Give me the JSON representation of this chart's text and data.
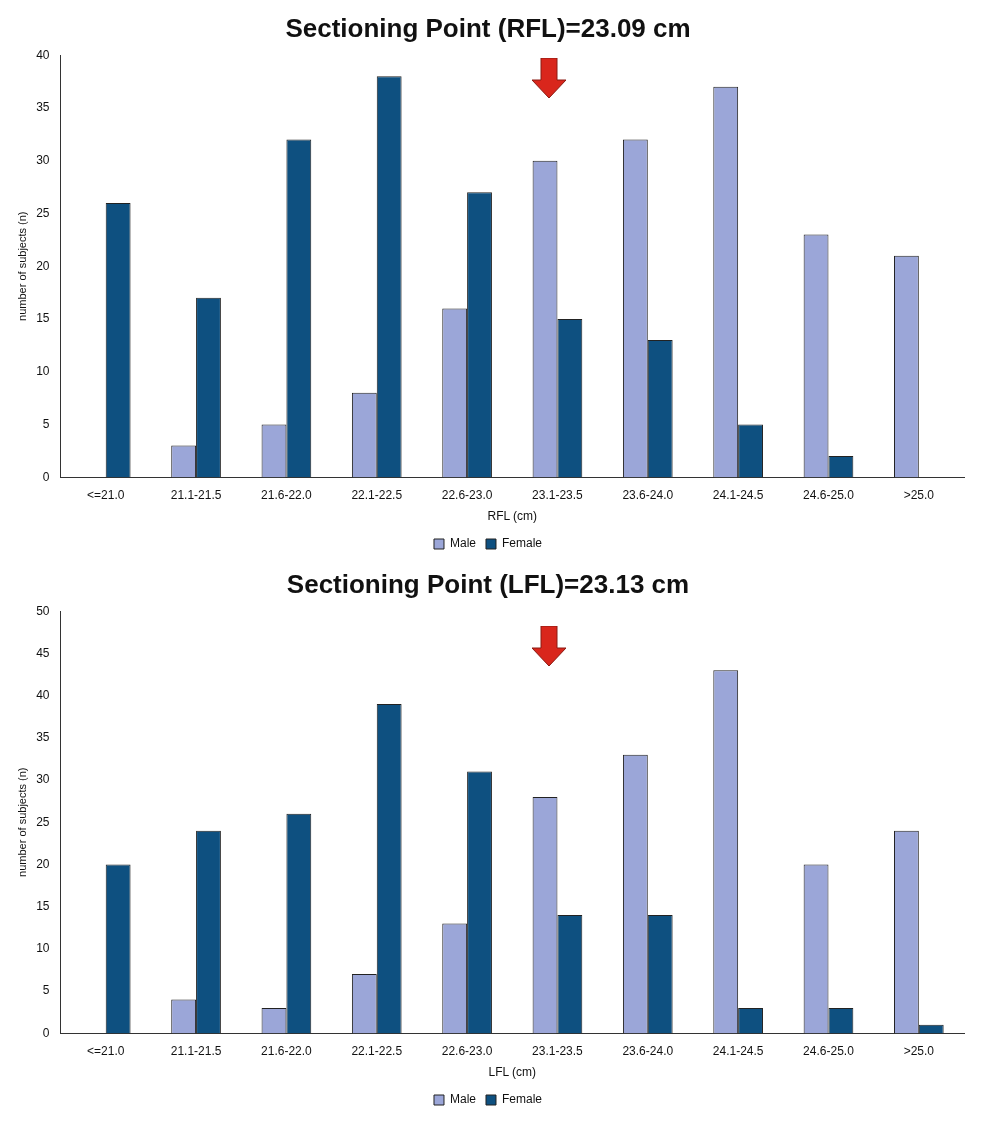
{
  "chart_data": [
    {
      "type": "bar",
      "title": "Sectioning Point (RFL)=23.09 cm",
      "xlabel": "RFL (cm)",
      "ylabel": "number of subjects (n)",
      "categories": [
        "<=21.0",
        "21.1-21.5",
        "21.6-22.0",
        "22.1-22.5",
        "22.6-23.0",
        "23.1-23.5",
        "23.6-24.0",
        "24.1-24.5",
        "24.6-25.0",
        ">25.0"
      ],
      "series": [
        {
          "name": "Male",
          "color": "#9ba6d8",
          "values": [
            0,
            3,
            5,
            8,
            16,
            30,
            32,
            37,
            23,
            21
          ]
        },
        {
          "name": "Female",
          "color": "#0e5080",
          "values": [
            26,
            17,
            32,
            38,
            27,
            15,
            13,
            5,
            2,
            0
          ]
        }
      ],
      "ylim": [
        0,
        40
      ],
      "yticks": [
        0,
        5,
        10,
        15,
        20,
        25,
        30,
        35,
        40
      ],
      "legend": "bottom"
    },
    {
      "type": "bar",
      "title": "Sectioning Point (LFL)=23.13 cm",
      "xlabel": "LFL (cm)",
      "ylabel": "number of subjects (n)",
      "categories": [
        "<=21.0",
        "21.1-21.5",
        "21.6-22.0",
        "22.1-22.5",
        "22.6-23.0",
        "23.1-23.5",
        "23.6-24.0",
        "24.1-24.5",
        "24.6-25.0",
        ">25.0"
      ],
      "series": [
        {
          "name": "Male",
          "color": "#9ba6d8",
          "values": [
            0,
            4,
            3,
            7,
            13,
            28,
            33,
            43,
            20,
            24
          ]
        },
        {
          "name": "Female",
          "color": "#0e5080",
          "values": [
            20,
            24,
            26,
            39,
            31,
            14,
            14,
            3,
            3,
            1
          ]
        }
      ],
      "ylim": [
        0,
        50
      ],
      "yticks": [
        0,
        5,
        10,
        15,
        20,
        25,
        30,
        35,
        40,
        45,
        50
      ],
      "legend": "bottom"
    }
  ]
}
